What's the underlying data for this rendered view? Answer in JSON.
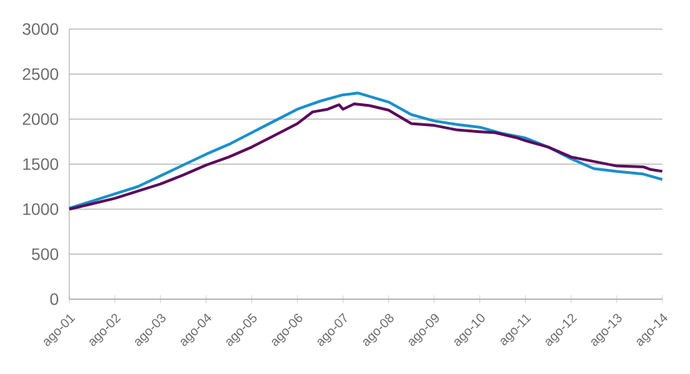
{
  "chart_data": {
    "type": "line",
    "xlim": [
      "2001-08",
      "2014-08"
    ],
    "xticks": [
      {
        "value": "2001-08",
        "label": "ago-01"
      },
      {
        "value": "2002-08",
        "label": "ago-02"
      },
      {
        "value": "2003-08",
        "label": "ago-03"
      },
      {
        "value": "2004-08",
        "label": "ago-04"
      },
      {
        "value": "2005-08",
        "label": "ago-05"
      },
      {
        "value": "2006-08",
        "label": "ago-06"
      },
      {
        "value": "2007-08",
        "label": "ago-07"
      },
      {
        "value": "2008-08",
        "label": "ago-08"
      },
      {
        "value": "2009-08",
        "label": "ago-09"
      },
      {
        "value": "2010-08",
        "label": "ago-10"
      },
      {
        "value": "2011-08",
        "label": "ago-11"
      },
      {
        "value": "2012-08",
        "label": "ago-12"
      },
      {
        "value": "2013-08",
        "label": "ago-13"
      },
      {
        "value": "2014-08",
        "label": "ago-14"
      }
    ],
    "ylim": [
      0,
      3000
    ],
    "yticks": [
      0,
      500,
      1000,
      1500,
      2000,
      2500,
      3000
    ],
    "grid": "y",
    "marker": "none",
    "line_style": "solid",
    "series": [
      {
        "color": "#1a8fcc",
        "x": [
          "2001-08",
          "2002-02",
          "2002-08",
          "2003-02",
          "2003-08",
          "2004-02",
          "2004-08",
          "2005-02",
          "2005-08",
          "2006-02",
          "2006-08",
          "2007-02",
          "2007-08",
          "2007-12",
          "2008-08",
          "2009-02",
          "2009-08",
          "2010-02",
          "2010-08",
          "2011-02",
          "2011-08",
          "2012-02",
          "2012-08",
          "2013-02",
          "2013-08",
          "2014-03",
          "2014-08"
        ],
        "values": [
          1010,
          1090,
          1170,
          1250,
          1370,
          1490,
          1610,
          1720,
          1850,
          1980,
          2110,
          2200,
          2270,
          2290,
          2190,
          2050,
          1980,
          1940,
          1910,
          1840,
          1790,
          1690,
          1560,
          1450,
          1420,
          1390,
          1330
        ]
      },
      {
        "color": "#5b0a5b",
        "x": [
          "2001-08",
          "2002-02",
          "2002-08",
          "2003-02",
          "2003-08",
          "2004-02",
          "2004-08",
          "2005-02",
          "2005-08",
          "2006-02",
          "2006-08",
          "2006-12",
          "2007-04",
          "2007-07",
          "2007-08",
          "2007-11",
          "2008-03",
          "2008-08",
          "2009-02",
          "2009-08",
          "2010-02",
          "2010-08",
          "2010-12",
          "2011-06",
          "2011-08",
          "2012-02",
          "2012-08",
          "2013-02",
          "2013-08",
          "2014-03",
          "2014-05",
          "2014-08"
        ],
        "values": [
          1000,
          1060,
          1120,
          1200,
          1280,
          1380,
          1490,
          1580,
          1690,
          1820,
          1950,
          2080,
          2110,
          2160,
          2110,
          2170,
          2150,
          2100,
          1950,
          1930,
          1880,
          1860,
          1850,
          1790,
          1760,
          1690,
          1580,
          1530,
          1480,
          1470,
          1440,
          1420
        ]
      }
    ]
  }
}
